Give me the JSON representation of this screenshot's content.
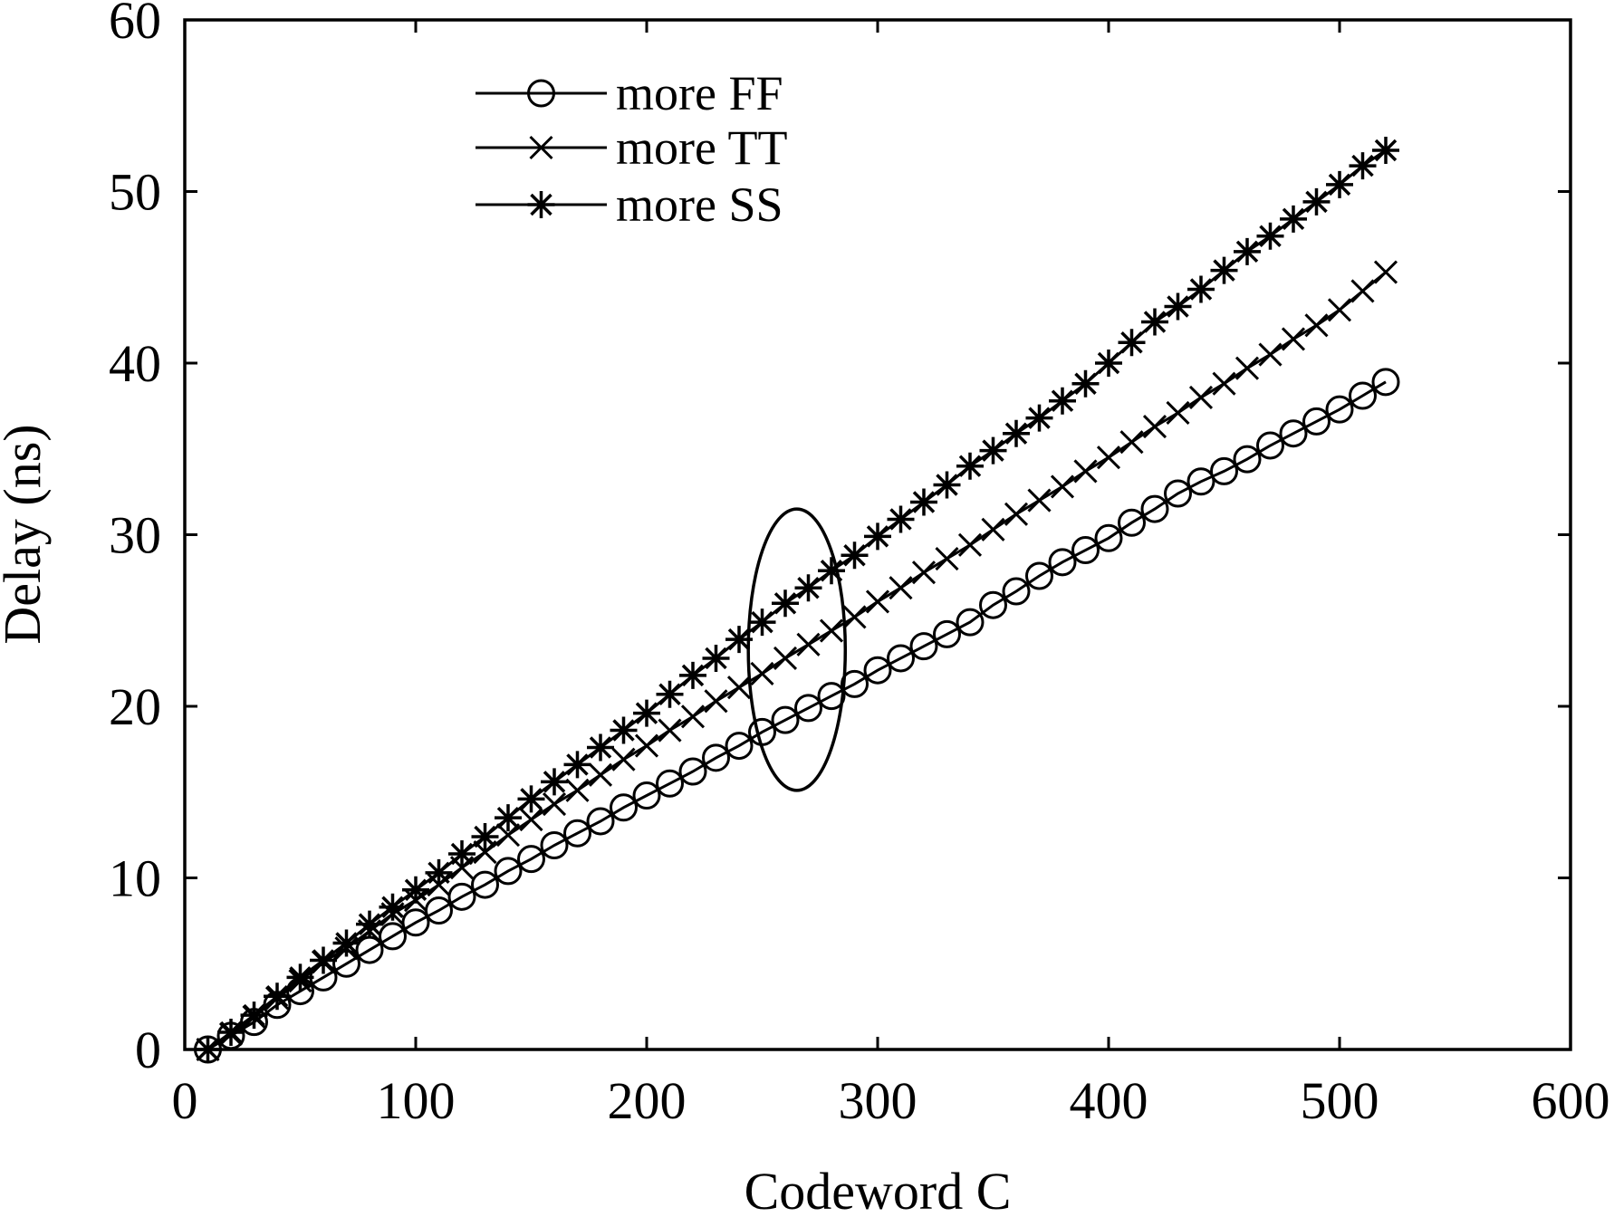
{
  "chart_data": {
    "type": "line",
    "title": "",
    "xlabel": "Codeword C",
    "ylabel": "Delay (ns)",
    "xlim": [
      0,
      600
    ],
    "ylim": [
      0,
      60
    ],
    "xticks": [
      0,
      100,
      200,
      300,
      400,
      500,
      600
    ],
    "yticks": [
      0,
      10,
      20,
      30,
      40,
      50,
      60
    ],
    "grid": false,
    "legend_position": "top-left",
    "colors": {
      "line": "#000000",
      "background": "#ffffff"
    },
    "x": [
      10,
      20,
      30,
      40,
      50,
      60,
      70,
      80,
      90,
      100,
      110,
      120,
      130,
      140,
      150,
      160,
      170,
      180,
      190,
      200,
      210,
      220,
      230,
      240,
      250,
      260,
      270,
      280,
      290,
      300,
      310,
      320,
      330,
      340,
      350,
      360,
      370,
      380,
      390,
      400,
      410,
      420,
      430,
      440,
      450,
      460,
      470,
      480,
      490,
      500,
      510,
      520
    ],
    "series": [
      {
        "name": "more FF",
        "marker": "circle",
        "values": [
          0,
          0.8,
          1.6,
          2.6,
          3.4,
          4.2,
          5.0,
          5.8,
          6.6,
          7.4,
          8.1,
          8.9,
          9.6,
          10.4,
          11.1,
          11.9,
          12.6,
          13.3,
          14.1,
          14.8,
          15.5,
          16.2,
          17.0,
          17.7,
          18.5,
          19.2,
          19.9,
          20.6,
          21.3,
          22.1,
          22.8,
          23.5,
          24.2,
          24.9,
          25.9,
          26.7,
          27.6,
          28.4,
          29.1,
          29.8,
          30.7,
          31.5,
          32.4,
          33.1,
          33.7,
          34.4,
          35.2,
          35.9,
          36.6,
          37.3,
          38.1,
          38.9
        ]
      },
      {
        "name": "more TT",
        "marker": "x",
        "values": [
          0,
          0.9,
          1.9,
          3.0,
          4.0,
          5.1,
          5.9,
          6.9,
          7.9,
          8.7,
          9.6,
          10.6,
          11.5,
          12.5,
          13.4,
          14.3,
          15.1,
          16.0,
          16.9,
          17.7,
          18.6,
          19.4,
          20.3,
          21.1,
          21.9,
          22.8,
          23.6,
          24.4,
          25.2,
          26.1,
          26.9,
          27.8,
          28.6,
          29.4,
          30.3,
          31.2,
          32.0,
          32.8,
          33.7,
          34.5,
          35.4,
          36.3,
          37.1,
          38.0,
          38.8,
          39.7,
          40.5,
          41.4,
          42.2,
          43.1,
          44.2,
          45.3
        ]
      },
      {
        "name": "more SS",
        "marker": "asterisk",
        "values": [
          0,
          1.0,
          2.0,
          3.1,
          4.2,
          5.2,
          6.2,
          7.3,
          8.3,
          9.3,
          10.3,
          11.4,
          12.4,
          13.5,
          14.6,
          15.6,
          16.6,
          17.6,
          18.6,
          19.6,
          20.7,
          21.8,
          22.8,
          23.9,
          24.9,
          26.0,
          26.9,
          27.9,
          28.8,
          29.9,
          30.9,
          31.9,
          32.9,
          34.0,
          34.9,
          35.9,
          36.8,
          37.8,
          38.8,
          40.0,
          41.2,
          42.4,
          43.3,
          44.3,
          45.4,
          46.5,
          47.4,
          48.4,
          49.4,
          50.4,
          51.5,
          52.4
        ]
      }
    ],
    "annotation": {
      "shape": "ellipse",
      "center": [
        265,
        23.3
      ],
      "rx": 21,
      "ry": 8.2
    }
  }
}
